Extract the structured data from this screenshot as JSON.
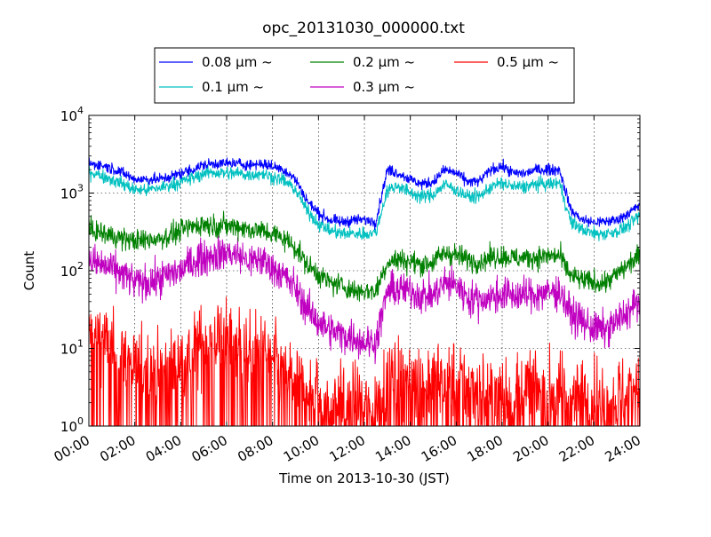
{
  "chart_data": {
    "type": "line",
    "title": "opc_20131030_000000.txt",
    "xlabel": "Time on 2013-10-30 (JST)",
    "ylabel": "Count",
    "yscale": "log",
    "ylim": [
      1,
      10000
    ],
    "xlim": [
      "00:00",
      "24:00"
    ],
    "grid": true,
    "legend_position": "top-center",
    "x_ticks": [
      "00:00",
      "02:00",
      "04:00",
      "06:00",
      "08:00",
      "10:00",
      "12:00",
      "14:00",
      "16:00",
      "18:00",
      "20:00",
      "22:00",
      "24:00"
    ],
    "y_ticks": [
      {
        "base": "10",
        "exp": "0"
      },
      {
        "base": "10",
        "exp": "1"
      },
      {
        "base": "10",
        "exp": "2"
      },
      {
        "base": "10",
        "exp": "3"
      },
      {
        "base": "10",
        "exp": "4"
      }
    ],
    "x_hours": [
      0,
      0.5,
      1,
      1.5,
      2,
      2.5,
      3,
      3.5,
      4,
      4.5,
      5,
      5.5,
      6,
      6.5,
      7,
      7.5,
      8,
      8.5,
      9,
      9.5,
      10,
      10.5,
      11,
      11.5,
      12,
      12.5,
      13,
      13.5,
      14,
      14.5,
      15,
      15.5,
      16,
      16.5,
      17,
      17.5,
      18,
      18.5,
      19,
      19.5,
      20,
      20.5,
      21,
      21.5,
      22,
      22.5,
      23,
      23.5,
      24
    ],
    "series": [
      {
        "name": "0.08 μm ~",
        "color": "#0000ff",
        "noise": 0.05,
        "values": [
          2400,
          2300,
          2100,
          1800,
          1500,
          1500,
          1500,
          1600,
          1800,
          2000,
          2300,
          2400,
          2400,
          2400,
          2300,
          2400,
          2200,
          2000,
          1500,
          800,
          550,
          450,
          420,
          450,
          450,
          430,
          2000,
          1800,
          1500,
          1300,
          1400,
          2000,
          1800,
          1400,
          1400,
          2000,
          2200,
          1800,
          1800,
          2000,
          2000,
          2000,
          600,
          450,
          420,
          430,
          450,
          550,
          700
        ]
      },
      {
        "name": "0.1 μm ~",
        "color": "#00c0c0",
        "noise": 0.06,
        "values": [
          1900,
          1700,
          1500,
          1300,
          1100,
          1100,
          1150,
          1250,
          1400,
          1550,
          1800,
          1850,
          1800,
          1800,
          1700,
          1800,
          1600,
          1450,
          1100,
          600,
          400,
          330,
          300,
          300,
          300,
          310,
          1100,
          1250,
          1000,
          900,
          950,
          1300,
          1100,
          900,
          900,
          1200,
          1350,
          1200,
          1200,
          1300,
          1300,
          1350,
          420,
          340,
          300,
          300,
          320,
          380,
          520
        ]
      },
      {
        "name": "0.2 μm ~",
        "color": "#008000",
        "noise": 0.1,
        "values": [
          330,
          310,
          280,
          260,
          240,
          250,
          260,
          280,
          330,
          370,
          400,
          380,
          380,
          370,
          340,
          330,
          300,
          260,
          200,
          120,
          90,
          70,
          65,
          55,
          55,
          55,
          130,
          140,
          130,
          120,
          130,
          170,
          160,
          140,
          130,
          150,
          155,
          145,
          145,
          150,
          155,
          155,
          85,
          75,
          70,
          70,
          90,
          120,
          160
        ]
      },
      {
        "name": "0.3 μm ~",
        "color": "#c000c0",
        "noise": 0.16,
        "values": [
          130,
          120,
          105,
          90,
          70,
          70,
          75,
          90,
          100,
          130,
          150,
          160,
          170,
          160,
          130,
          140,
          110,
          85,
          60,
          32,
          22,
          17,
          15,
          14,
          12,
          12,
          55,
          58,
          55,
          48,
          48,
          70,
          65,
          45,
          42,
          45,
          50,
          48,
          48,
          50,
          52,
          55,
          28,
          22,
          18,
          17,
          22,
          30,
          42
        ]
      },
      {
        "name": "0.5 μm ~",
        "color": "#ff0000",
        "noise": 0.35,
        "values": [
          16,
          14,
          10,
          8,
          6,
          6,
          5,
          6,
          7,
          9,
          12,
          14,
          14,
          12,
          10,
          9,
          7,
          5,
          4,
          3,
          2.5,
          2,
          2,
          2,
          1.8,
          1.8,
          5,
          4.5,
          4.5,
          4,
          4,
          4.5,
          4,
          3.5,
          3,
          3,
          3,
          3,
          3,
          3,
          3,
          3,
          2.5,
          2.5,
          2.5,
          2.5,
          2.5,
          3,
          4
        ]
      }
    ]
  }
}
